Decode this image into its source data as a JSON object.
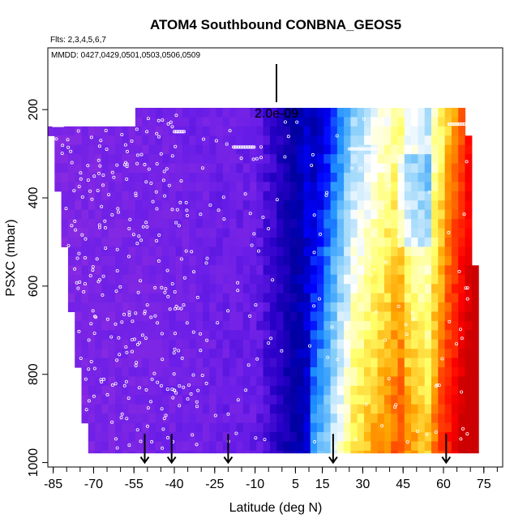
{
  "chart_data": {
    "type": "heatmap",
    "title": "ATOM4 Southbound CONBNA_GEOS5",
    "flights_note": "Flts: 2,3,4,5,6,7",
    "dates_note": "MMDD: 0427,0429,0501,0503,0506,0509",
    "xlabel": "Latitude (deg N)",
    "ylabel": "PSXC (mbar)",
    "xlim": [
      -87,
      82
    ],
    "ylim": [
      1010,
      60
    ],
    "x_ticks": [
      -85,
      -70,
      -55,
      -40,
      -25,
      -10,
      5,
      15,
      30,
      45,
      60,
      75
    ],
    "x_tick_labels": [
      "-85",
      "-70",
      "-55",
      "-40",
      "-25",
      "-10",
      "5",
      "15",
      "30",
      "45",
      "60",
      "75"
    ],
    "y_ticks": [
      200,
      400,
      600,
      800,
      1000
    ],
    "y_tick_labels": [
      "200",
      "400",
      "600",
      "800",
      "1000"
    ],
    "scale_label": "2.0e-09",
    "profile_latitudes": [
      -51,
      -41,
      -20,
      19,
      61
    ],
    "colormap": [
      "#8a2be2",
      "#6a1ee8",
      "#2a00c8",
      "#0000a0",
      "#0000ff",
      "#1e90ff",
      "#87cefa",
      "#ffffff",
      "#ffff66",
      "#ffa500",
      "#ff4500",
      "#ff0000",
      "#cc0000"
    ],
    "colors": {
      "marker_stroke": "#ffffff",
      "arrow": "#000000",
      "frame": "#000000"
    }
  }
}
